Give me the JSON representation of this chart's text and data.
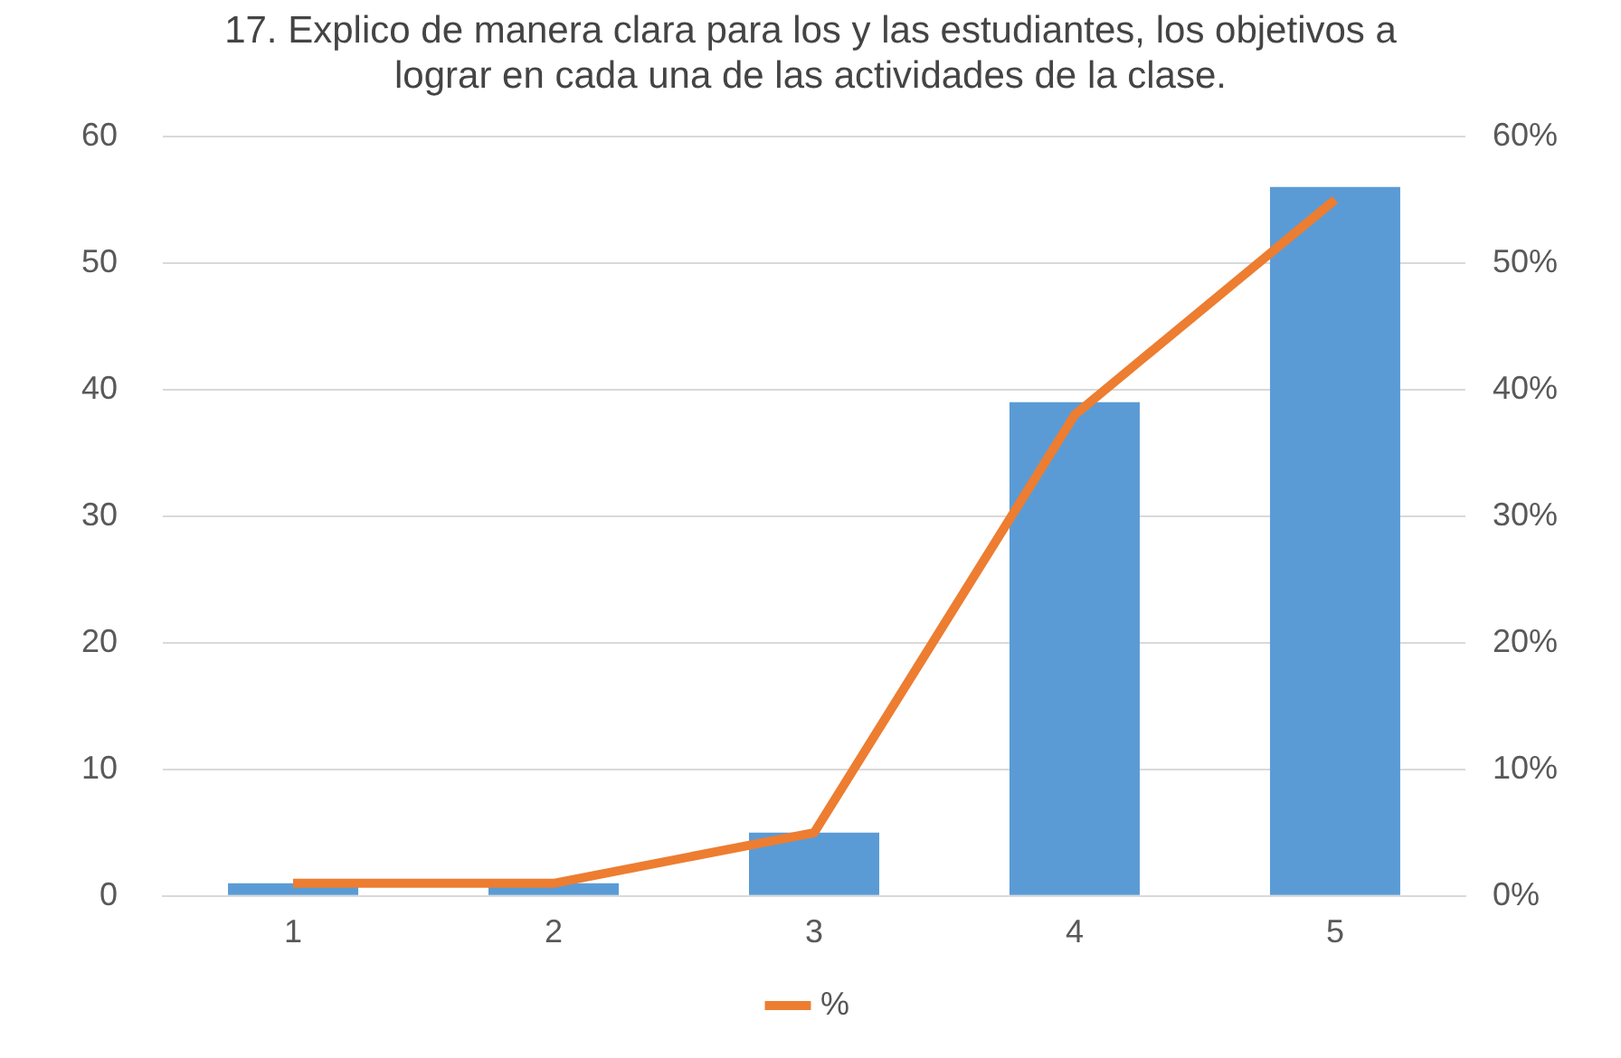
{
  "chart_data": {
    "type": "bar",
    "title": "17. Explico de manera clara para los y las estudiantes, los objetivos a lograr en cada una de las actividades de la clase.",
    "categories": [
      "1",
      "2",
      "3",
      "4",
      "5"
    ],
    "series": [
      {
        "color": "#5b9bd5",
        "values": [
          1,
          1,
          5,
          39,
          56
        ]
      },
      {
        "type": "line",
        "name": "%",
        "color": "#ed7d31",
        "axis": "y2",
        "values": [
          1,
          1,
          5,
          38,
          55
        ]
      }
    ],
    "ylim": [
      0,
      60
    ],
    "yticks": [
      0,
      10,
      20,
      30,
      40,
      50,
      60
    ],
    "y2lim": [
      0,
      60
    ],
    "y2ticks": [
      {
        "value": 0,
        "label": "0%"
      },
      {
        "value": 10,
        "label": "10%"
      },
      {
        "value": 20,
        "label": "20%"
      },
      {
        "value": 30,
        "label": "30%"
      },
      {
        "value": 40,
        "label": "40%"
      },
      {
        "value": 50,
        "label": "50%"
      },
      {
        "value": 60,
        "label": "60%"
      }
    ],
    "grid": "y",
    "legend": "bottom",
    "marker": "none",
    "line_style": "solid"
  }
}
